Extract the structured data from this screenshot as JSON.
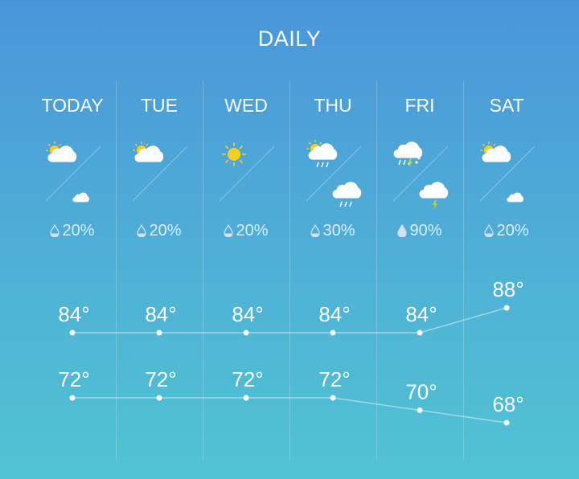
{
  "header": {
    "title": "DAILY"
  },
  "colors": {
    "sun": "#f9cf1c",
    "cloud": "#ffffff",
    "bolt": "#c8d41e"
  },
  "days": [
    {
      "label": "TODAY",
      "day_icon": "partly-cloudy-day-icon",
      "night_icon": "partly-cloudy-night-icon",
      "precip": "20%",
      "precip_icon": "drop-low-icon",
      "high": "84°",
      "low": "72°"
    },
    {
      "label": "TUE",
      "day_icon": "partly-cloudy-day-icon",
      "night_icon": "moon-icon",
      "precip": "20%",
      "precip_icon": "drop-low-icon",
      "high": "84°",
      "low": "72°"
    },
    {
      "label": "WED",
      "day_icon": "sun-icon",
      "night_icon": "moon-icon",
      "precip": "20%",
      "precip_icon": "drop-low-icon",
      "high": "84°",
      "low": "72°"
    },
    {
      "label": "THU",
      "day_icon": "partly-sunny-rain-icon",
      "night_icon": "rain-icon",
      "precip": "30%",
      "precip_icon": "drop-low-icon",
      "high": "84°",
      "low": "72°"
    },
    {
      "label": "FRI",
      "day_icon": "thunder-rain-snow-icon",
      "night_icon": "thunderstorm-icon",
      "precip": "90%",
      "precip_icon": "drop-full-icon",
      "high": "84°",
      "low": "70°"
    },
    {
      "label": "SAT",
      "day_icon": "partly-cloudy-day-icon",
      "night_icon": "partly-cloudy-night-icon",
      "precip": "20%",
      "precip_icon": "drop-low-icon",
      "high": "88°",
      "low": "68°"
    }
  ],
  "chart_data": {
    "type": "line",
    "categories": [
      "TODAY",
      "TUE",
      "WED",
      "THU",
      "FRI",
      "SAT"
    ],
    "series": [
      {
        "values": [
          84,
          84,
          84,
          84,
          84,
          88
        ]
      },
      {
        "values": [
          72,
          72,
          72,
          72,
          70,
          68
        ]
      }
    ],
    "unit": "°"
  }
}
